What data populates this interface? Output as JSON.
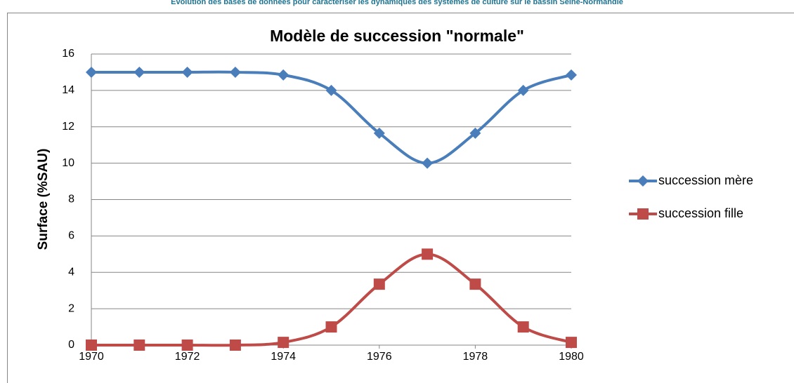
{
  "header": {
    "text": "Evolution des bases de données pour caractériser les dynamiques des systèmes de culture sur le bassin Seine-Normandie"
  },
  "chart_data": {
    "type": "line",
    "title": "Modèle de succession \"normale\"",
    "y_label": "Surface (%SAU)",
    "x": [
      1970,
      1971,
      1972,
      1973,
      1974,
      1975,
      1976,
      1977,
      1978,
      1979,
      1980
    ],
    "series": [
      {
        "name": "succession mère",
        "color": "#4a7ebb",
        "marker": "diamond",
        "values": [
          15,
          15,
          15,
          15,
          14.85,
          14,
          11.65,
          10,
          11.65,
          14,
          14.85
        ]
      },
      {
        "name": "succession fille",
        "color": "#be4b48",
        "marker": "square",
        "values": [
          0,
          0,
          0,
          0,
          0.15,
          1,
          3.35,
          5,
          3.35,
          1,
          0.15
        ]
      }
    ],
    "xlim": [
      1970,
      1980
    ],
    "xticks": [
      1970,
      1972,
      1974,
      1976,
      1978,
      1980
    ],
    "ylim": [
      0,
      16
    ],
    "yticks": [
      0,
      2,
      4,
      6,
      8,
      10,
      12,
      14,
      16
    ],
    "grid": true,
    "smooth": true,
    "legend": "right"
  }
}
